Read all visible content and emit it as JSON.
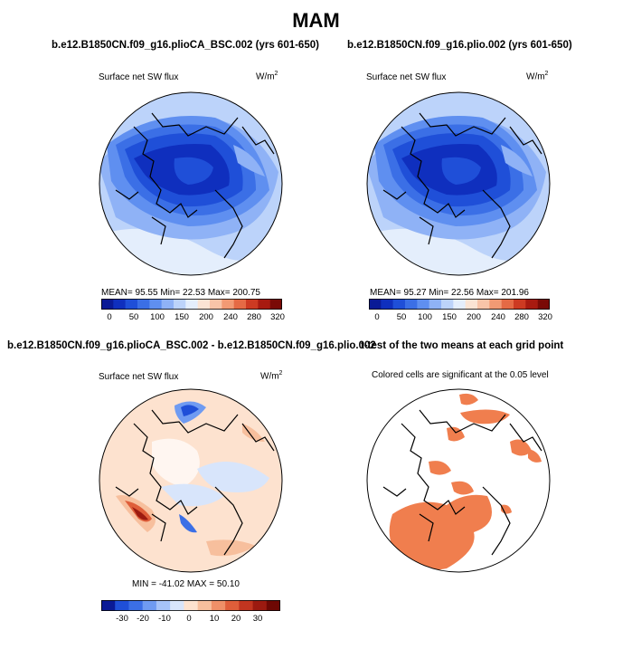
{
  "figure": {
    "title": "MAM"
  },
  "panels": [
    {
      "title": "b.e12.B1850CN.f09_g16.plioCA_BSC.002 (yrs 601-650)",
      "left_label": "Surface net SW flux",
      "units": "W/m",
      "units_sup": "2",
      "stats": "MEAN=    95.55    Min=    22.53    Max=  200.75",
      "colorbar_ticks": [
        "0",
        "50",
        "100",
        "150",
        "200",
        "240",
        "280",
        "320"
      ]
    },
    {
      "title": "b.e12.B1850CN.f09_g16.plio.002 (yrs 601-650)",
      "left_label": "Surface net SW flux",
      "units": "W/m",
      "units_sup": "2",
      "stats": "MEAN=    95.27    Min=    22.56    Max=  201.96",
      "colorbar_ticks": [
        "0",
        "50",
        "100",
        "150",
        "200",
        "240",
        "280",
        "320"
      ]
    },
    {
      "title": "b.e12.B1850CN.f09_g16.plioCA_BSC.002 - b.e12.B1850CN.f09_g16.plio.002",
      "left_label": "Surface net SW flux",
      "units": "W/m",
      "units_sup": "2",
      "stats": "MIN  =  -41.02   MAX  =    50.10",
      "colorbar_ticks": [
        "-30",
        "-20",
        "-10",
        "0",
        "10",
        "20",
        "30"
      ]
    },
    {
      "title": "t-test of the two means at each grid point",
      "left_label": "Colored cells are significant at the 0.05 level"
    }
  ],
  "colors": {
    "abs_scale": [
      "#0a1a96",
      "#0f2fbe",
      "#1f4fd8",
      "#3b6fe6",
      "#5f8ff0",
      "#8fb2f6",
      "#bcd3fa",
      "#e4eefc",
      "#fbe4d4",
      "#f8c4a8",
      "#f29a74",
      "#e56a45",
      "#cd3a22",
      "#a81a10",
      "#7a0a06"
    ],
    "diff_scale": [
      "#0a1a96",
      "#1f4fd8",
      "#3b6fe6",
      "#6f9bf2",
      "#a6c3f8",
      "#d8e5fb",
      "#fde2cf",
      "#f7bf9d",
      "#ef9068",
      "#df5e3a",
      "#c23520",
      "#9c1a10",
      "#6e0804"
    ],
    "significant": "#f07e4e"
  }
}
